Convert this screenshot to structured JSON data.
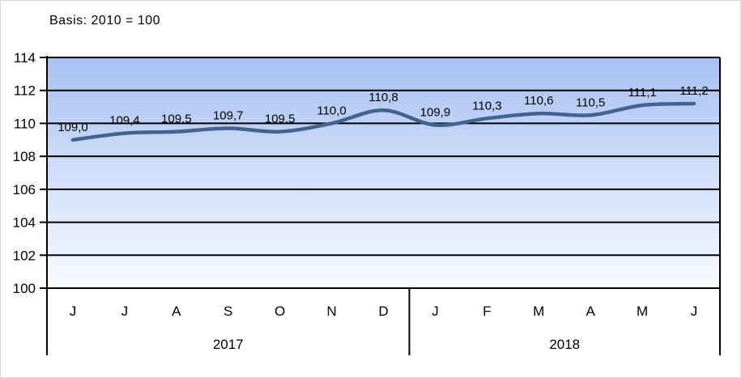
{
  "title": "Basis: 2010 = 100",
  "chart_data": {
    "type": "line",
    "title": "Basis: 2010 = 100",
    "categories": [
      "J",
      "J",
      "A",
      "S",
      "O",
      "N",
      "D",
      "J",
      "F",
      "M",
      "A",
      "M",
      "J"
    ],
    "year_groups": [
      {
        "label": "2017",
        "from": 0,
        "to": 6
      },
      {
        "label": "2018",
        "from": 7,
        "to": 12
      }
    ],
    "values": [
      109.0,
      109.4,
      109.5,
      109.7,
      109.5,
      110.0,
      110.8,
      109.9,
      110.3,
      110.6,
      110.5,
      111.1,
      111.2
    ],
    "value_labels": [
      "109,0",
      "109,4",
      "109,5",
      "109,7",
      "109,5",
      "110,0",
      "110,8",
      "109,9",
      "110,3",
      "110,6",
      "110,5",
      "111,1",
      "111,2"
    ],
    "ylim": [
      100,
      114
    ],
    "ytick_step": 2,
    "ytick_labels": [
      "100",
      "102",
      "104",
      "106",
      "108",
      "110",
      "112",
      "114"
    ],
    "grid": true,
    "legend": "none",
    "smooth_line": true,
    "colors": {
      "line": "#42628f",
      "plot_bg_top": "#a7c1f2",
      "plot_bg_bottom": "#f9fbff",
      "grid": "#000000",
      "text": "#000000"
    }
  }
}
